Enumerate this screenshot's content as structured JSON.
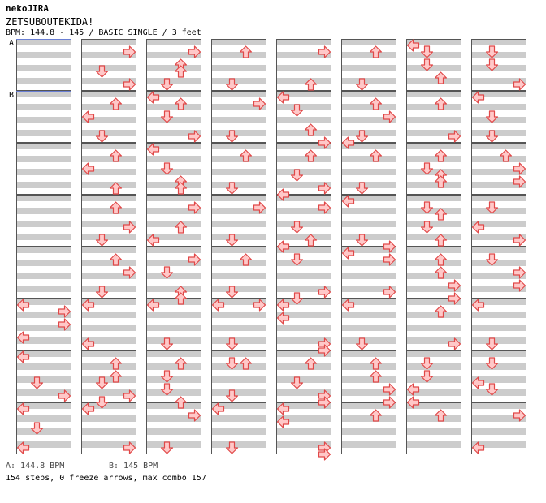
{
  "header": {
    "brand": "nekoJIRA",
    "song_title": "ZETSUBOUTEKIDA!",
    "info_line": "BPM: 144.8 - 145 / BASIC SINGLE / 3 feet"
  },
  "bpm_markers": [
    {
      "label": "A",
      "measure": 0
    },
    {
      "label": "B",
      "measure": 1
    }
  ],
  "legend": {
    "a": "A: 144.8 BPM",
    "b": "B: 145 BPM"
  },
  "footer": {
    "stats": "154 steps, 0 freeze arrows, max combo 157"
  },
  "colors": {
    "arrow_fill": "#ffc8c8",
    "arrow_stroke": "#e04848",
    "band": "#cccccc",
    "border": "#555555",
    "bpm_line": "#6a7fd4"
  },
  "chart_data": {
    "type": "table",
    "lane_order": [
      "left",
      "down",
      "up",
      "right"
    ],
    "measures_per_column": 8,
    "rows_per_measure": 8,
    "steps": [
      [],
      [],
      [],
      [],
      [],
      [
        [
          0,
          0
        ],
        [
          0,
          5
        ],
        [
          3,
          1
        ],
        [
          3,
          3
        ]
      ],
      [
        [
          0,
          0
        ],
        [
          1,
          4
        ],
        [
          3,
          6
        ]
      ],
      [
        [
          0,
          0
        ],
        [
          1,
          3
        ],
        [
          0,
          6
        ]
      ],
      [
        [
          3,
          1
        ],
        [
          1,
          4
        ],
        [
          3,
          6
        ]
      ],
      [
        [
          2,
          1
        ],
        [
          0,
          3
        ],
        [
          1,
          6
        ]
      ],
      [
        [
          2,
          1
        ],
        [
          0,
          3
        ],
        [
          2,
          6
        ]
      ],
      [
        [
          2,
          1
        ],
        [
          3,
          4
        ],
        [
          1,
          6
        ]
      ],
      [
        [
          2,
          1
        ],
        [
          3,
          3
        ],
        [
          1,
          6
        ]
      ],
      [
        [
          0,
          0
        ],
        [
          0,
          6
        ]
      ],
      [
        [
          2,
          1
        ],
        [
          2,
          3
        ],
        [
          1,
          4
        ],
        [
          3,
          6
        ],
        [
          1,
          7
        ]
      ],
      [
        [
          0,
          0
        ],
        [
          3,
          6
        ]
      ],
      [
        [
          3,
          1
        ],
        [
          2,
          3
        ],
        [
          2,
          4
        ],
        [
          1,
          6
        ]
      ],
      [
        [
          0,
          0
        ],
        [
          2,
          1
        ],
        [
          1,
          3
        ],
        [
          3,
          6
        ]
      ],
      [
        [
          0,
          0
        ],
        [
          1,
          3
        ],
        [
          2,
          5
        ],
        [
          2,
          6
        ]
      ],
      [
        [
          3,
          1
        ],
        [
          2,
          4
        ],
        [
          0,
          6
        ]
      ],
      [
        [
          3,
          1
        ],
        [
          1,
          3
        ],
        [
          2,
          6
        ],
        [
          2,
          7
        ]
      ],
      [
        [
          0,
          0
        ],
        [
          1,
          6
        ]
      ],
      [
        [
          2,
          1
        ],
        [
          1,
          3
        ],
        [
          1,
          5
        ],
        [
          2,
          7
        ]
      ],
      [
        [
          3,
          1
        ],
        [
          1,
          6
        ]
      ],
      [
        [
          2,
          1
        ],
        [
          1,
          6
        ]
      ],
      [
        [
          3,
          1
        ],
        [
          1,
          6
        ]
      ],
      [
        [
          2,
          1
        ],
        [
          1,
          6
        ]
      ],
      [
        [
          3,
          1
        ],
        [
          1,
          6
        ]
      ],
      [
        [
          2,
          1
        ],
        [
          1,
          6
        ]
      ],
      [
        [
          0,
          0
        ],
        [
          3,
          0
        ],
        [
          1,
          6
        ]
      ],
      [
        [
          1,
          1
        ],
        [
          2,
          1
        ],
        [
          1,
          6
        ]
      ],
      [
        [
          0,
          0
        ],
        [
          1,
          6
        ]
      ],
      [
        [
          3,
          1
        ],
        [
          2,
          6
        ]
      ],
      [
        [
          0,
          0
        ],
        [
          1,
          2
        ],
        [
          2,
          5
        ],
        [
          3,
          7
        ]
      ],
      [
        [
          2,
          1
        ],
        [
          1,
          4
        ],
        [
          3,
          6
        ],
        [
          0,
          7
        ]
      ],
      [
        [
          3,
          1
        ],
        [
          1,
          4
        ],
        [
          2,
          6
        ],
        [
          0,
          7
        ]
      ],
      [
        [
          1,
          1
        ],
        [
          3,
          6
        ],
        [
          1,
          7
        ]
      ],
      [
        [
          0,
          0
        ],
        [
          0,
          2
        ],
        [
          3,
          6
        ],
        [
          3,
          7
        ]
      ],
      [
        [
          2,
          1
        ],
        [
          1,
          4
        ],
        [
          3,
          6
        ],
        [
          3,
          7
        ]
      ],
      [
        [
          0,
          0
        ],
        [
          0,
          2
        ],
        [
          3,
          6
        ],
        [
          3,
          7
        ]
      ],
      [
        [
          2,
          1
        ],
        [
          1,
          6
        ]
      ],
      [
        [
          2,
          1
        ],
        [
          3,
          3
        ],
        [
          1,
          6
        ],
        [
          0,
          7
        ]
      ],
      [
        [
          2,
          1
        ],
        [
          1,
          6
        ]
      ],
      [
        [
          0,
          0
        ],
        [
          1,
          6
        ],
        [
          3,
          7
        ]
      ],
      [
        [
          0,
          0
        ],
        [
          3,
          1
        ],
        [
          3,
          6
        ]
      ],
      [
        [
          0,
          0
        ],
        [
          1,
          6
        ]
      ],
      [
        [
          2,
          1
        ],
        [
          2,
          3
        ],
        [
          3,
          5
        ],
        [
          3,
          7
        ]
      ],
      [
        [
          2,
          1
        ]
      ],
      [
        [
          0,
          0
        ],
        [
          1,
          1
        ],
        [
          1,
          3
        ],
        [
          2,
          5
        ]
      ],
      [
        [
          2,
          1
        ],
        [
          3,
          6
        ]
      ],
      [
        [
          2,
          1
        ],
        [
          1,
          3
        ],
        [
          2,
          4
        ],
        [
          2,
          5
        ]
      ],
      [
        [
          1,
          1
        ],
        [
          2,
          2
        ],
        [
          1,
          4
        ],
        [
          2,
          6
        ]
      ],
      [
        [
          2,
          1
        ],
        [
          2,
          3
        ],
        [
          3,
          5
        ],
        [
          3,
          7
        ]
      ],
      [
        [
          2,
          1
        ],
        [
          3,
          6
        ]
      ],
      [
        [
          1,
          1
        ],
        [
          1,
          3
        ],
        [
          0,
          5
        ],
        [
          0,
          7
        ]
      ],
      [
        [
          2,
          1
        ]
      ],
      [
        [
          1,
          1
        ],
        [
          1,
          3
        ],
        [
          3,
          6
        ]
      ],
      [
        [
          0,
          0
        ],
        [
          1,
          3
        ],
        [
          1,
          6
        ]
      ],
      [
        [
          2,
          1
        ],
        [
          3,
          3
        ],
        [
          3,
          5
        ]
      ],
      [
        [
          1,
          1
        ],
        [
          0,
          4
        ],
        [
          3,
          6
        ]
      ],
      [
        [
          1,
          1
        ],
        [
          3,
          3
        ],
        [
          3,
          5
        ]
      ],
      [
        [
          0,
          0
        ],
        [
          1,
          6
        ]
      ],
      [
        [
          1,
          1
        ],
        [
          0,
          4
        ],
        [
          1,
          5
        ]
      ],
      [
        [
          3,
          1
        ],
        [
          0,
          6
        ]
      ]
    ]
  }
}
